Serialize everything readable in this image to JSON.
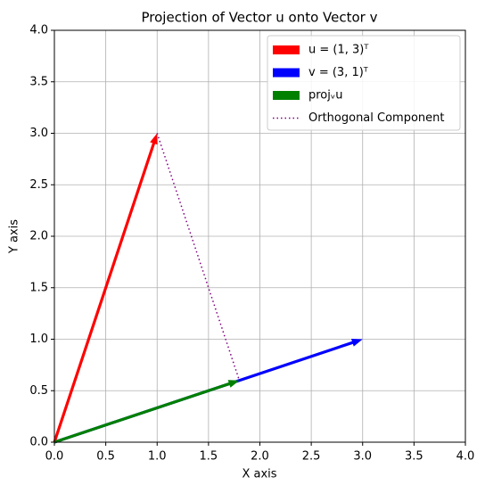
{
  "chart_data": {
    "type": "vector",
    "title": "Projection of Vector u onto Vector v",
    "x_label": "X axis",
    "y_label": "Y axis",
    "xlim": [
      0,
      4
    ],
    "ylim": [
      0,
      4
    ],
    "xticks": [
      {
        "value": 0,
        "label": "0.0"
      },
      {
        "value": 0.5,
        "label": "0.5"
      },
      {
        "value": 1,
        "label": "1.0"
      },
      {
        "value": 1.5,
        "label": "1.5"
      },
      {
        "value": 2,
        "label": "2.0"
      },
      {
        "value": 2.5,
        "label": "2.5"
      },
      {
        "value": 3,
        "label": "3.0"
      },
      {
        "value": 3.5,
        "label": "3.5"
      },
      {
        "value": 4,
        "label": "4.0"
      }
    ],
    "yticks": [
      {
        "value": 0,
        "label": "0.0"
      },
      {
        "value": 0.5,
        "label": "0.5"
      },
      {
        "value": 1,
        "label": "1.0"
      },
      {
        "value": 1.5,
        "label": "1.5"
      },
      {
        "value": 2,
        "label": "2.0"
      },
      {
        "value": 2.5,
        "label": "2.5"
      },
      {
        "value": 3,
        "label": "3.0"
      },
      {
        "value": 3.5,
        "label": "3.5"
      },
      {
        "value": 4,
        "label": "4.0"
      }
    ],
    "grid": true,
    "legend": "upper right",
    "series": [
      {
        "name": "u = (1, 3)ᵀ",
        "color": "red",
        "style": "arrow",
        "x": [
          0,
          1
        ],
        "values": [
          0,
          3
        ]
      },
      {
        "name": "v = (3, 1)ᵀ",
        "color": "blue",
        "style": "arrow",
        "x": [
          0,
          3
        ],
        "values": [
          0,
          1
        ]
      },
      {
        "name": "projᵥu",
        "color": "green",
        "style": "arrow",
        "x": [
          0,
          1.8
        ],
        "values": [
          0,
          0.6
        ]
      },
      {
        "name": "Orthogonal Component",
        "color": "purple",
        "style": "dotted",
        "x": [
          1,
          1.8
        ],
        "values": [
          3,
          0.6
        ]
      }
    ]
  }
}
